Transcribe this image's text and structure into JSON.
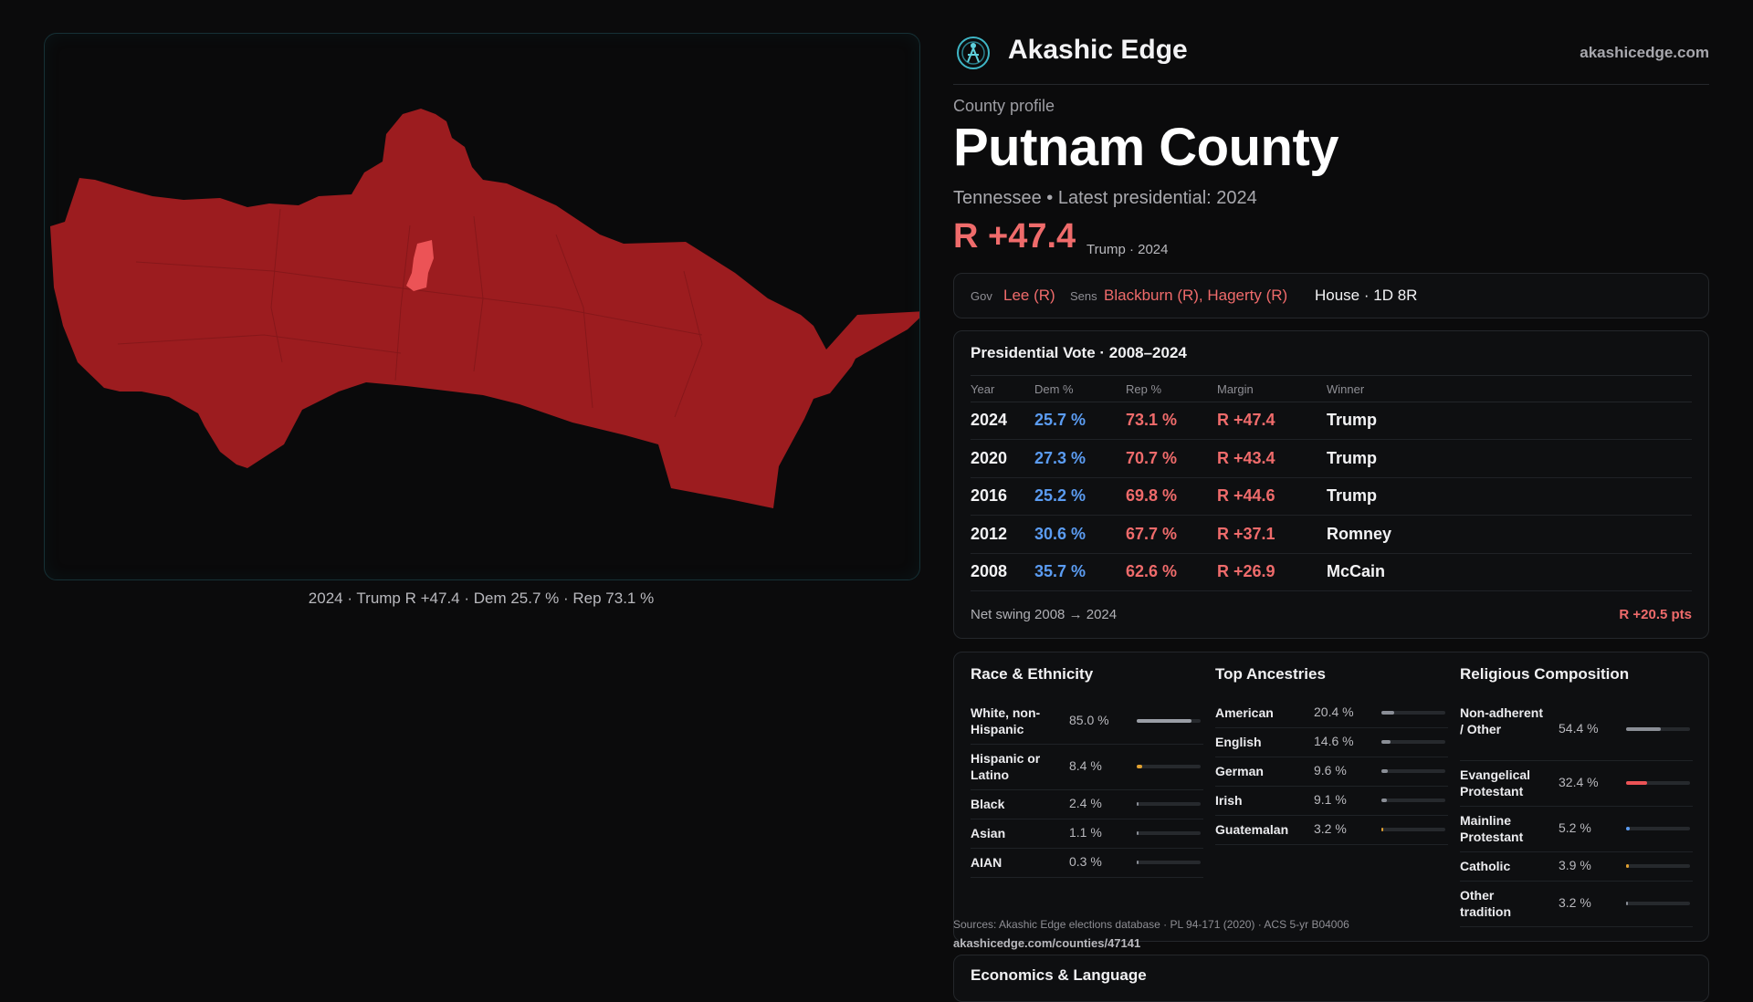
{
  "map": {
    "caption": "2024 · Trump R +47.4 · Dem 25.7 % · Rep 73.1 %",
    "fill_color": "#9c1c1f",
    "highlight_color": "#ec5356"
  },
  "header": {
    "brand": "Akashic Edge",
    "site": "akashicedge.com",
    "logo_icon": "globe-people-icon"
  },
  "profile": {
    "kicker": "County profile",
    "county": "Putnam County",
    "subline": "Tennessee • Latest presidential: 2024",
    "margin": "R +47.4",
    "margin_note": "Trump · 2024"
  },
  "officials": {
    "gov_label": "Gov",
    "gov": "Lee (R)",
    "sens_label": "Sens",
    "sens": "Blackburn (R), Hagerty (R)",
    "house": "House · 1D 8R"
  },
  "presidential": {
    "title": "Presidential Vote · 2008–2024",
    "columns": [
      "Year",
      "Dem %",
      "Rep %",
      "Margin",
      "Winner"
    ],
    "rows": [
      {
        "year": "2024",
        "dem": "25.7 %",
        "rep": "73.1 %",
        "margin": "R +47.4",
        "winner": "Trump"
      },
      {
        "year": "2020",
        "dem": "27.3 %",
        "rep": "70.7 %",
        "margin": "R +43.4",
        "winner": "Trump"
      },
      {
        "year": "2016",
        "dem": "25.2 %",
        "rep": "69.8 %",
        "margin": "R +44.6",
        "winner": "Trump"
      },
      {
        "year": "2012",
        "dem": "30.6 %",
        "rep": "67.7 %",
        "margin": "R +37.1",
        "winner": "Romney"
      },
      {
        "year": "2008",
        "dem": "35.7 %",
        "rep": "62.6 %",
        "margin": "R +26.9",
        "winner": "McCain"
      }
    ],
    "swing_label": "Net swing 2008 → 2024",
    "swing_value": "R +20.5 pts"
  },
  "race": {
    "title": "Race & Ethnicity",
    "items": [
      {
        "name": "White, non-Hispanic",
        "pct": "85.0 %",
        "value": 0.85,
        "color": "#9a9ea6"
      },
      {
        "name": "Hispanic or Latino",
        "pct": "8.4 %",
        "value": 0.084,
        "color": "#e0a030"
      },
      {
        "name": "Black",
        "pct": "2.4 %",
        "value": 0.024,
        "color": "#8a8e96"
      },
      {
        "name": "Asian",
        "pct": "1.1 %",
        "value": 0.011,
        "color": "#8a8e96"
      },
      {
        "name": "AIAN",
        "pct": "0.3 %",
        "value": 0.003,
        "color": "#8a8e96"
      }
    ]
  },
  "ancestry": {
    "title": "Top Ancestries",
    "items": [
      {
        "name": "American",
        "pct": "20.4 %",
        "value": 0.204,
        "color": "#8a8e96"
      },
      {
        "name": "English",
        "pct": "14.6 %",
        "value": 0.146,
        "color": "#8a8e96"
      },
      {
        "name": "German",
        "pct": "9.6 %",
        "value": 0.096,
        "color": "#8a8e96"
      },
      {
        "name": "Irish",
        "pct": "9.1 %",
        "value": 0.091,
        "color": "#8a8e96"
      },
      {
        "name": "Guatemalan",
        "pct": "3.2 %",
        "value": 0.032,
        "color": "#e0a030"
      }
    ]
  },
  "religion": {
    "title": "Religious Composition",
    "items": [
      {
        "name": "Non-adherent / Other",
        "pct": "54.4 %",
        "value": 0.544,
        "color": "#8a8e96"
      },
      {
        "name": "Evangelical Protestant",
        "pct": "32.4 %",
        "value": 0.324,
        "color": "#ec5356"
      },
      {
        "name": "Mainline Protestant",
        "pct": "5.2 %",
        "value": 0.052,
        "color": "#5b9cf2"
      },
      {
        "name": "Catholic",
        "pct": "3.9 %",
        "value": 0.039,
        "color": "#e0a030"
      },
      {
        "name": "Other tradition",
        "pct": "3.2 %",
        "value": 0.032,
        "color": "#8a8e96"
      }
    ]
  },
  "footer": {
    "sources": "Sources: Akashic Edge elections database · PL 94-171 (2020) · ACS 5-yr B04006",
    "url": "akashicedge.com/counties/47141"
  },
  "economics": {
    "title": "Economics & Language"
  }
}
